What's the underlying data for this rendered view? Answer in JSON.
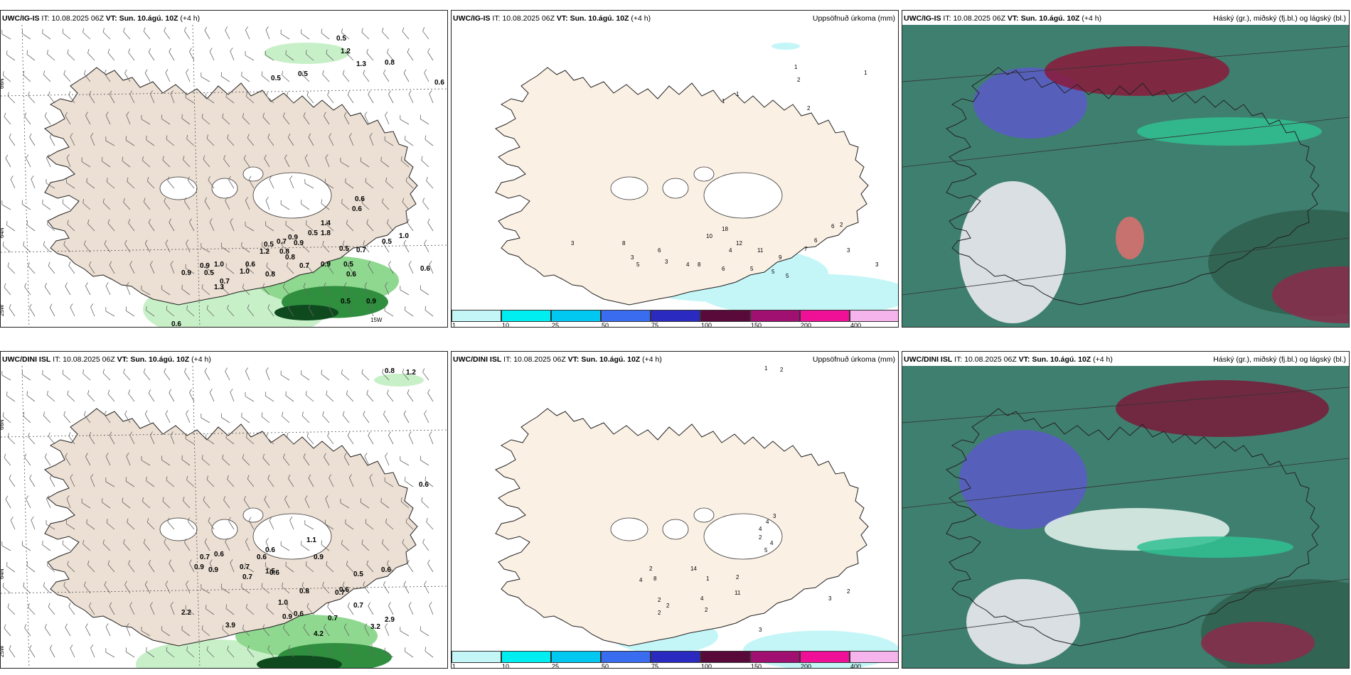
{
  "panels": [
    {
      "header": {
        "model": "UWC/IG-IS",
        "it_label": "IT:",
        "it": "10.08.2025 06Z",
        "vt_label": "VT:",
        "vt": "Sun. 10.ágú. 10Z",
        "lead": "(+4 h)",
        "right": ""
      }
    },
    {
      "header": {
        "model": "UWC/IG-IS",
        "it_label": "IT:",
        "it": "10.08.2025 06Z",
        "vt_label": "VT:",
        "vt": "Sun. 10.ágú. 10Z",
        "lead": "(+4 h)",
        "right": "Uppsöfnuð úrkoma (mm)"
      }
    },
    {
      "header": {
        "model": "UWC/IG-IS",
        "it_label": "IT:",
        "it": "10.08.2025 06Z",
        "vt_label": "VT:",
        "vt": "Sun. 10.ágú. 10Z",
        "lead": "(+4 h)",
        "right": "Háský (gr.), miðský (fj.bl.) og lágský (bl.)"
      }
    },
    {
      "header": {
        "model": "UWC/DINI ISL",
        "it_label": "IT:",
        "it": "10.08.2025 06Z",
        "vt_label": "VT:",
        "vt": "Sun. 10.ágú. 10Z",
        "lead": "(+4 h)",
        "right": ""
      }
    },
    {
      "header": {
        "model": "UWC/DINI ISL",
        "it_label": "IT:",
        "it": "10.08.2025 06Z",
        "vt_label": "VT:",
        "vt": "Sun. 10.ágú. 10Z",
        "lead": "(+4 h)",
        "right": "Uppsöfnuð úrkoma (mm)"
      }
    },
    {
      "header": {
        "model": "UWC/DINI ISL",
        "it_label": "IT:",
        "it": "10.08.2025 06Z",
        "vt_label": "VT:",
        "vt": "Sun. 10.ágú. 10Z",
        "lead": "(+4 h)",
        "right": "Háský (gr.), miðský (fj.bl.) og lágský (bl.)"
      }
    }
  ],
  "grid_labels": {
    "lat66": "66N",
    "lat64": "64N",
    "lon25": "25W",
    "lon15": "15W"
  },
  "colorbar": {
    "labels": [
      "1",
      "10",
      "25",
      "50",
      "75",
      "100",
      "150",
      "200",
      "400"
    ],
    "colors": [
      "#c4f6f8",
      "#00eef0",
      "#00c8f0",
      "#3a6cf0",
      "#2a2ac0",
      "#5a0a3a",
      "#a01070",
      "#f01098",
      "#f6b4ec"
    ]
  },
  "wind_values_top": [
    "0.5",
    "1.2",
    "1.3",
    "0.8",
    "0.5",
    "0.5",
    "0.6",
    "0.6",
    "0.6",
    "1.4",
    "1.8",
    "0.9",
    "0.7",
    "0.5",
    "0.5",
    "1.0",
    "0.7",
    "0.5",
    "0.9",
    "0.5",
    "0.6",
    "0.6",
    "1.0",
    "0.9",
    "0.7",
    "1.0",
    "0.8",
    "0.7",
    "0.9",
    "0.6",
    "0.9",
    "0.5",
    "1.3",
    "0.8",
    "0.5",
    "1.2",
    "0.8",
    "0.5",
    "0.9",
    "0.6"
  ],
  "wind_values_bottom": [
    "0.8",
    "1.2",
    "0.6",
    "0.6",
    "0.7",
    "0.6",
    "0.9",
    "0.9",
    "0.7",
    "0.6",
    "0.6",
    "1.1",
    "0.9",
    "0.6",
    "0.7",
    "1.0",
    "0.8",
    "0.7",
    "0.5",
    "0.9",
    "0.6",
    "0.7",
    "0.6",
    "0.7",
    "2.2",
    "3.9",
    "4.2",
    "3.2",
    "2.9",
    "1.5"
  ],
  "precip_values_top": [
    "1",
    "2",
    "1",
    "2",
    "1",
    "1",
    "10",
    "18",
    "12",
    "11",
    "9",
    "7",
    "6",
    "6",
    "2",
    "3",
    "3",
    "8",
    "4",
    "5",
    "5",
    "5",
    "8",
    "3",
    "5",
    "6",
    "3",
    "4",
    "6",
    "3"
  ],
  "precip_values_bottom": [
    "1",
    "2",
    "2",
    "8",
    "14",
    "1",
    "2",
    "4",
    "11",
    "2",
    "2",
    "2",
    "4",
    "4",
    "4",
    "3",
    "2",
    "4",
    "5",
    "2",
    "3",
    "3",
    "2"
  ]
}
